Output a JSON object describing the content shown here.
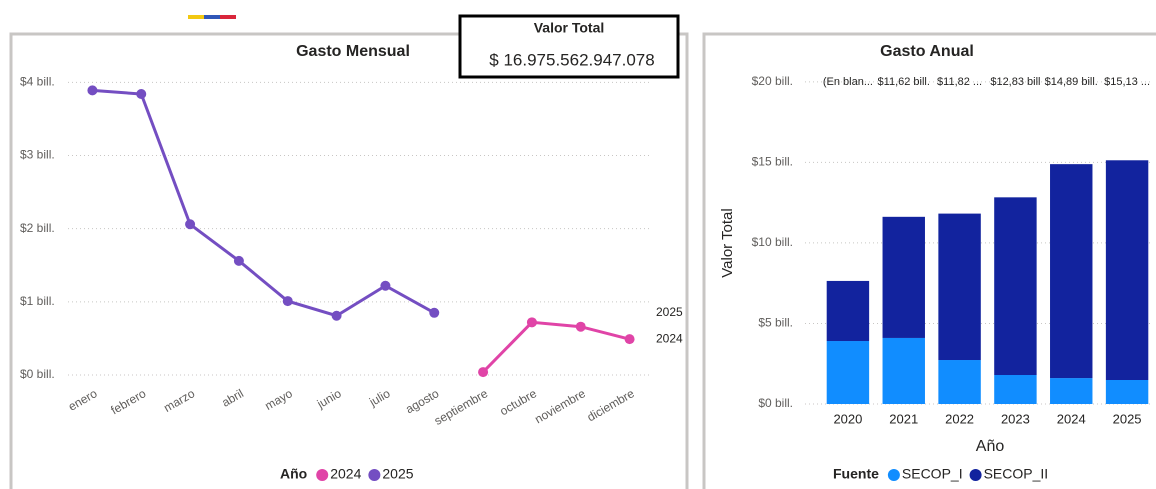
{
  "card": {
    "title": "Valor Total",
    "value": "$ 16.975.562.947.078"
  },
  "chart_data": [
    {
      "type": "line",
      "title": "Gasto Mensual",
      "categories": [
        "enero",
        "febrero",
        "marzo",
        "abril",
        "mayo",
        "junio",
        "julio",
        "agosto",
        "septiembre",
        "octubre",
        "noviembre",
        "diciembre"
      ],
      "series": [
        {
          "name": "2024",
          "color": "#e044a7",
          "values": [
            null,
            null,
            null,
            null,
            null,
            null,
            null,
            null,
            0.04,
            0.72,
            0.66,
            0.49
          ]
        },
        {
          "name": "2025",
          "color": "#744ec2",
          "values": [
            3.89,
            3.84,
            2.06,
            1.56,
            1.01,
            0.81,
            1.22,
            0.85,
            null,
            null,
            null,
            null
          ]
        }
      ],
      "ylim": [
        0,
        4.1
      ],
      "yticks": [
        {
          "value": 0,
          "label": "$0 bill."
        },
        {
          "value": 1,
          "label": "$1 bill."
        },
        {
          "value": 2,
          "label": "$2 bill."
        },
        {
          "value": 3,
          "label": "$3 bill."
        },
        {
          "value": 4,
          "label": "$4 bill."
        }
      ],
      "grid": true,
      "legend_title": "Año",
      "legend": "bottom"
    },
    {
      "type": "stacked_bar",
      "title": "Gasto Anual",
      "categories": [
        "2020",
        "2021",
        "2022",
        "2023",
        "2024",
        "2025"
      ],
      "series": [
        {
          "name": "SECOP_I",
          "color": "#118dff",
          "values": [
            3.91,
            4.1,
            2.73,
            1.8,
            1.61,
            1.49
          ]
        },
        {
          "name": "SECOP_II",
          "color": "#12239e",
          "values": [
            3.73,
            7.52,
            9.09,
            11.03,
            13.28,
            13.64
          ]
        }
      ],
      "total_labels": [
        "(En blan...",
        "$11,62 bill.",
        "$11,82 ...",
        "$12,83 bill",
        "$14,89 bill.",
        "$15,13 ..."
      ],
      "ylabel": "Valor Total",
      "xlabel": "Año",
      "ylim": [
        0,
        20.3
      ],
      "yticks": [
        {
          "value": 0,
          "label": "$0 bill."
        },
        {
          "value": 5,
          "label": "$5 bill."
        },
        {
          "value": 10,
          "label": "$10 bill."
        },
        {
          "value": 15,
          "label": "$15 bill."
        },
        {
          "value": 20,
          "label": "$20 bill."
        }
      ],
      "grid": true,
      "legend_title": "Fuente",
      "legend": "bottom"
    }
  ]
}
